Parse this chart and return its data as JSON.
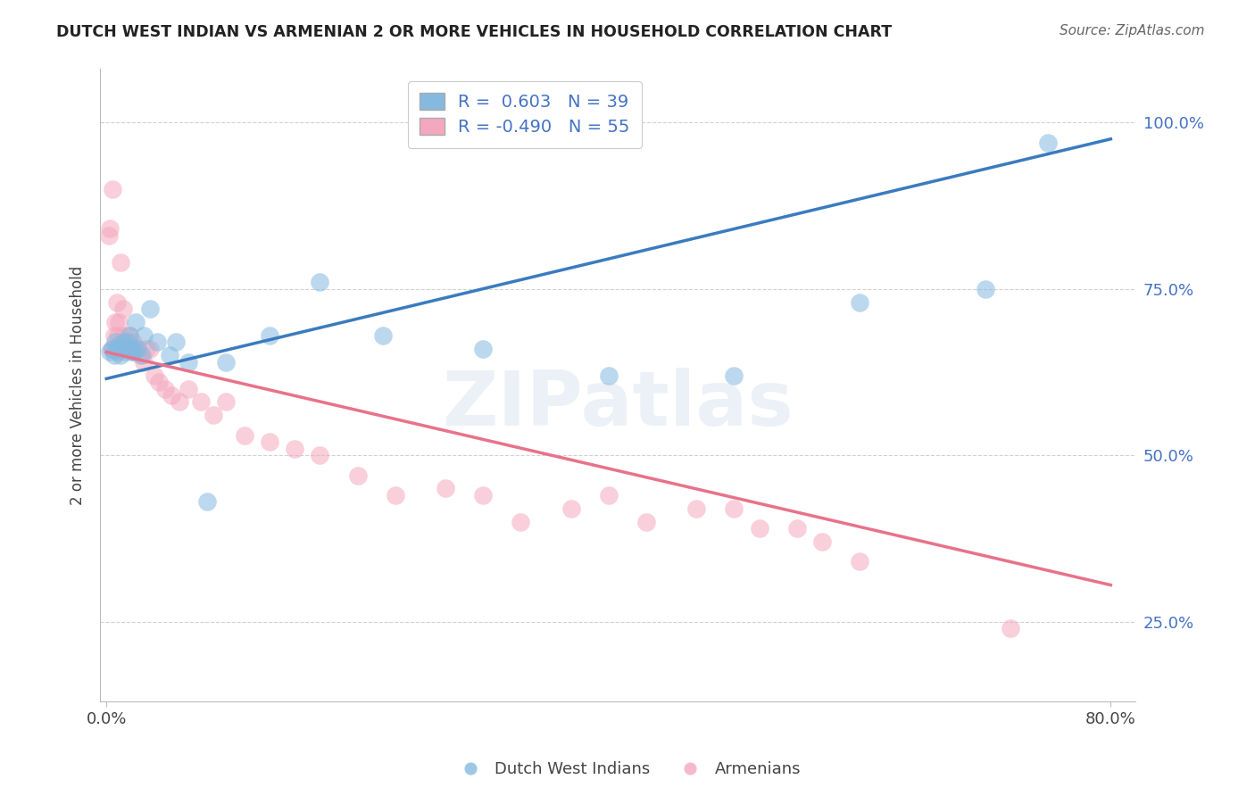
{
  "title": "DUTCH WEST INDIAN VS ARMENIAN 2 OR MORE VEHICLES IN HOUSEHOLD CORRELATION CHART",
  "source": "Source: ZipAtlas.com",
  "ylabel": "2 or more Vehicles in Household",
  "blue_R": 0.603,
  "blue_N": 39,
  "pink_R": -0.49,
  "pink_N": 55,
  "blue_color": "#85b9e0",
  "pink_color": "#f4a8bf",
  "blue_line_color": "#3a7bbf",
  "pink_line_color": "#e8728a",
  "legend_label_blue": "Dutch West Indians",
  "legend_label_pink": "Armenians",
  "watermark": "ZIPatlas",
  "blue_line_x0": 0.0,
  "blue_line_y0": 0.615,
  "blue_line_x1": 0.8,
  "blue_line_y1": 0.975,
  "pink_line_x0": 0.0,
  "pink_line_y0": 0.655,
  "pink_line_x1": 0.8,
  "pink_line_y1": 0.305,
  "blue_scatter_x": [
    0.003,
    0.005,
    0.006,
    0.007,
    0.008,
    0.009,
    0.01,
    0.011,
    0.012,
    0.013,
    0.014,
    0.015,
    0.016,
    0.017,
    0.018,
    0.019,
    0.02,
    0.021,
    0.022,
    0.023,
    0.025,
    0.028,
    0.03,
    0.035,
    0.04,
    0.05,
    0.055,
    0.065,
    0.08,
    0.095,
    0.13,
    0.17,
    0.22,
    0.3,
    0.4,
    0.5,
    0.6,
    0.7,
    0.75
  ],
  "blue_scatter_y": [
    0.655,
    0.66,
    0.65,
    0.67,
    0.66,
    0.655,
    0.665,
    0.65,
    0.66,
    0.66,
    0.67,
    0.655,
    0.665,
    0.67,
    0.68,
    0.66,
    0.655,
    0.66,
    0.655,
    0.7,
    0.66,
    0.65,
    0.68,
    0.72,
    0.67,
    0.65,
    0.67,
    0.64,
    0.43,
    0.64,
    0.68,
    0.76,
    0.68,
    0.66,
    0.62,
    0.62,
    0.73,
    0.75,
    0.97
  ],
  "pink_scatter_x": [
    0.002,
    0.003,
    0.004,
    0.005,
    0.006,
    0.007,
    0.008,
    0.009,
    0.01,
    0.011,
    0.012,
    0.013,
    0.014,
    0.015,
    0.016,
    0.017,
    0.018,
    0.019,
    0.02,
    0.021,
    0.022,
    0.023,
    0.025,
    0.027,
    0.03,
    0.032,
    0.035,
    0.038,
    0.042,
    0.047,
    0.052,
    0.058,
    0.065,
    0.075,
    0.085,
    0.095,
    0.11,
    0.13,
    0.15,
    0.17,
    0.2,
    0.23,
    0.27,
    0.3,
    0.33,
    0.37,
    0.4,
    0.43,
    0.47,
    0.5,
    0.52,
    0.55,
    0.57,
    0.6,
    0.72
  ],
  "pink_scatter_y": [
    0.83,
    0.84,
    0.66,
    0.9,
    0.68,
    0.7,
    0.73,
    0.68,
    0.7,
    0.79,
    0.67,
    0.72,
    0.68,
    0.66,
    0.66,
    0.66,
    0.68,
    0.66,
    0.66,
    0.67,
    0.655,
    0.66,
    0.66,
    0.65,
    0.64,
    0.66,
    0.66,
    0.62,
    0.61,
    0.6,
    0.59,
    0.58,
    0.6,
    0.58,
    0.56,
    0.58,
    0.53,
    0.52,
    0.51,
    0.5,
    0.47,
    0.44,
    0.45,
    0.44,
    0.4,
    0.42,
    0.44,
    0.4,
    0.42,
    0.42,
    0.39,
    0.39,
    0.37,
    0.34,
    0.24
  ],
  "xlim": [
    -0.005,
    0.82
  ],
  "ylim": [
    0.13,
    1.08
  ],
  "y_tick_vals": [
    0.25,
    0.5,
    0.75,
    1.0
  ],
  "y_tick_labels": [
    "25.0%",
    "50.0%",
    "75.0%",
    "100.0%"
  ],
  "x_tick_vals": [
    0.0,
    0.8
  ],
  "x_tick_labels": [
    "0.0%",
    "80.0%"
  ],
  "figsize": [
    14.06,
    8.92
  ],
  "dpi": 100
}
